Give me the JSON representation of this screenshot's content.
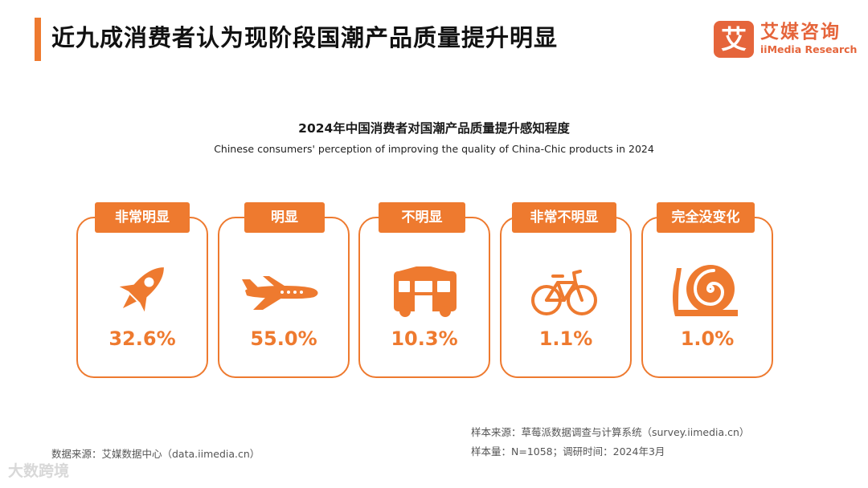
{
  "header": {
    "title": "近九成消费者认为现阶段国潮产品质量提升明显"
  },
  "logo": {
    "mark": "艾",
    "name_cn": "艾媒咨询",
    "name_en": "iiMedia Research"
  },
  "chart_data": {
    "type": "bar",
    "title": "2024年中国消费者对国潮产品质量提升感知程度",
    "subtitle": "Chinese consumers' perception of improving the quality of China-Chic products in 2024",
    "categories": [
      "非常明显",
      "明显",
      "不明显",
      "非常不明显",
      "完全没变化"
    ],
    "values": [
      32.6,
      55.0,
      10.3,
      1.1,
      1.0
    ],
    "value_labels": [
      "32.6%",
      "55.0%",
      "10.3%",
      "1.1%",
      "1.0%"
    ],
    "icons": [
      "rocket-icon",
      "airplane-icon",
      "bus-icon",
      "bicycle-icon",
      "snail-icon"
    ],
    "unit": "%",
    "accent_color": "#ee7a2f"
  },
  "footer": {
    "data_source": "数据来源：艾媒数据中心（data.iimedia.cn）",
    "sample_source": "样本来源：草莓派数据调查与计算系统（survey.iimedia.cn）",
    "sample_info": "样本量：N=1058；调研时间：2024年3月",
    "watermark": "大数跨境"
  }
}
